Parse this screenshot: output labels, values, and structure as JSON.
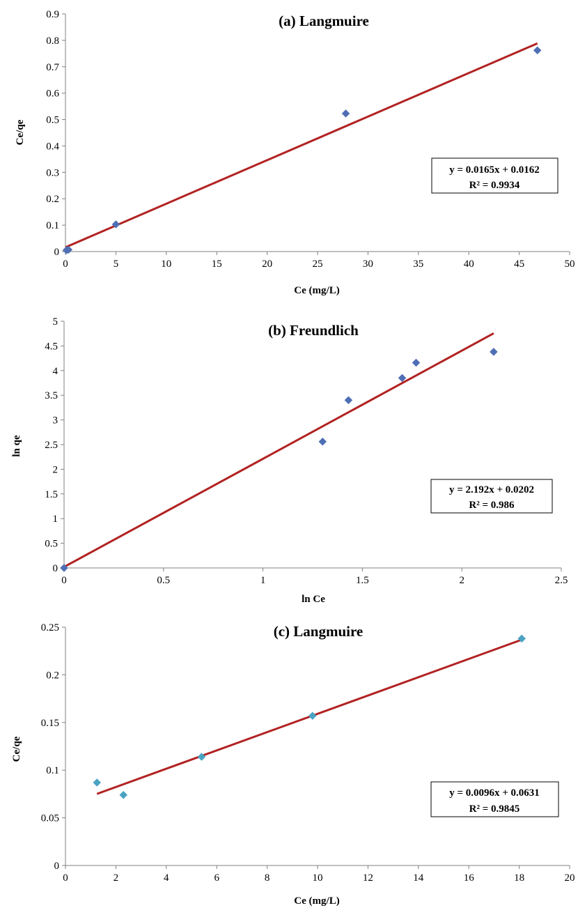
{
  "chart_data": [
    {
      "type": "scatter",
      "title": "(a)  Langmuire",
      "xlabel": "Ce (mg/L)",
      "ylabel": "Ce/qe",
      "xlim": [
        0,
        50
      ],
      "ylim": [
        0,
        0.9
      ],
      "xticks": [
        0,
        5,
        10,
        15,
        20,
        25,
        30,
        35,
        40,
        45,
        50
      ],
      "yticks": [
        0,
        0.1,
        0.2,
        0.3,
        0.4,
        0.5,
        0.6,
        0.7,
        0.8,
        0.9
      ],
      "grid": false,
      "series": [
        {
          "points": [
            [
              0.1,
              0.005
            ],
            [
              0.3,
              0.007
            ],
            [
              5.0,
              0.103
            ],
            [
              27.8,
              0.523
            ],
            [
              46.8,
              0.762
            ]
          ],
          "color": "#4f6fb4",
          "marker": "diamond"
        }
      ],
      "trendline": {
        "slope": 0.0165,
        "intercept": 0.0162,
        "x_from": 0,
        "x_to": 46.8,
        "color": "#b22222"
      },
      "equation": "y = 0.0165x + 0.0162",
      "r2": "R² = 0.9934"
    },
    {
      "type": "scatter",
      "title": "(b)  Freundlich",
      "xlabel": "ln Ce",
      "ylabel": "ln qe",
      "xlim": [
        0,
        2.5
      ],
      "ylim": [
        0,
        5
      ],
      "xticks": [
        0,
        0.5,
        1,
        1.5,
        2,
        2.5
      ],
      "yticks": [
        0,
        0.5,
        1,
        1.5,
        2,
        2.5,
        3,
        3.5,
        4,
        4.5,
        5
      ],
      "grid": false,
      "series": [
        {
          "points": [
            [
              0,
              0
            ],
            [
              1.3,
              2.56
            ],
            [
              1.43,
              3.4
            ],
            [
              1.7,
              3.85
            ],
            [
              1.77,
              4.16
            ],
            [
              2.16,
              4.38
            ]
          ],
          "color": "#4f6fb4",
          "marker": "diamond"
        }
      ],
      "trendline": {
        "slope": 2.192,
        "intercept": 0.0202,
        "x_from": 0,
        "x_to": 2.16,
        "color": "#b22222"
      },
      "equation": "y = 2.192x + 0.0202",
      "r2": "R² = 0.986"
    },
    {
      "type": "scatter",
      "title": "(c)  Langmuire",
      "xlabel": "Ce (mg/L)",
      "ylabel": "Ce/qe",
      "xlim": [
        0,
        20
      ],
      "ylim": [
        0,
        0.25
      ],
      "xticks": [
        0,
        2,
        4,
        6,
        8,
        10,
        12,
        14,
        16,
        18,
        20
      ],
      "yticks": [
        0,
        0.05,
        0.1,
        0.15,
        0.2,
        0.25
      ],
      "grid": false,
      "series": [
        {
          "points": [
            [
              1.25,
              0.087
            ],
            [
              2.3,
              0.074
            ],
            [
              5.4,
              0.114
            ],
            [
              9.8,
              0.157
            ],
            [
              18.1,
              0.238
            ]
          ],
          "color": "#4ba3c3",
          "marker": "diamond"
        }
      ],
      "trendline": {
        "slope": 0.0096,
        "intercept": 0.0631,
        "x_from": 1.25,
        "x_to": 18.1,
        "color": "#b22222"
      },
      "equation": "y = 0.0096x + 0.0631",
      "r2": "R² = 0.9845"
    }
  ]
}
